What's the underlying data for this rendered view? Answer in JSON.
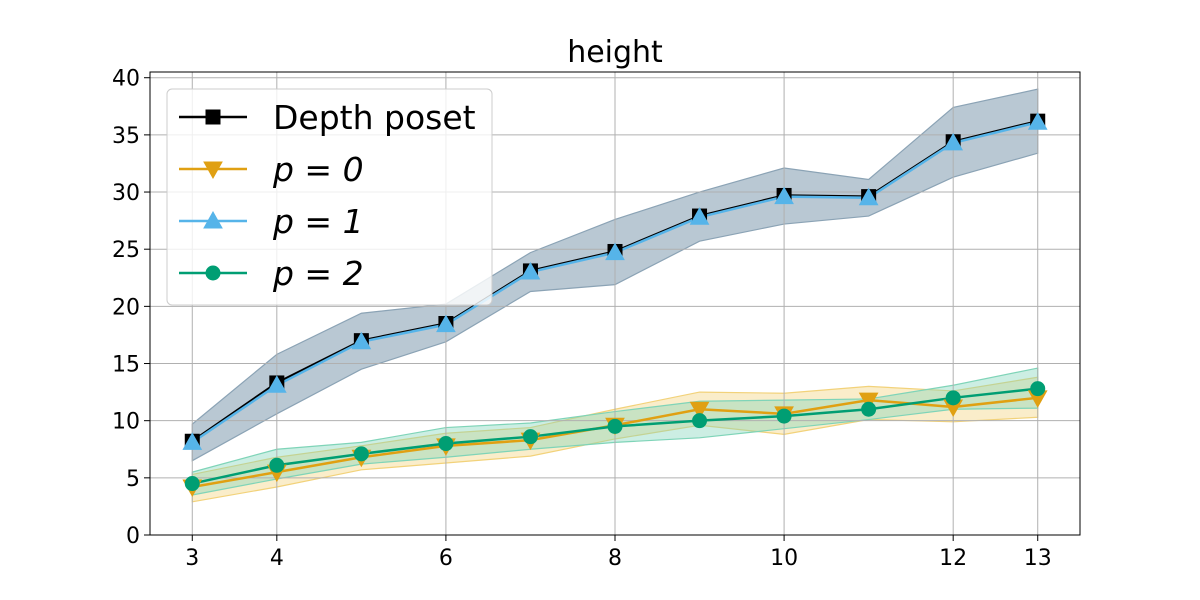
{
  "chart_data": {
    "type": "line",
    "title": "height",
    "xlabel": "",
    "ylabel": "",
    "xlim": [
      2.5,
      13.5
    ],
    "ylim": [
      0,
      40.5
    ],
    "x_ticks": [
      3,
      4,
      6,
      8,
      10,
      12,
      13
    ],
    "y_ticks": [
      0,
      5,
      10,
      15,
      20,
      25,
      30,
      35,
      40
    ],
    "grid": true,
    "legend_position": "top-left",
    "x": [
      3,
      4,
      5,
      6,
      7,
      8,
      9,
      10,
      11,
      12,
      13
    ],
    "series": [
      {
        "name": "Depth poset",
        "marker": "square",
        "color": "#000000",
        "values": [
          8.2,
          13.3,
          17.0,
          18.5,
          23.1,
          24.8,
          27.9,
          29.7,
          29.6,
          34.4,
          36.2
        ],
        "band_lower": [
          6.5,
          10.6,
          14.5,
          16.9,
          21.3,
          21.9,
          25.7,
          27.2,
          27.9,
          31.3,
          33.4
        ],
        "band_upper": [
          9.7,
          15.8,
          19.4,
          20.2,
          24.7,
          27.6,
          30.0,
          32.1,
          31.1,
          37.4,
          39.0
        ],
        "band_color": "#8ba3b5"
      },
      {
        "name": "p = 0",
        "marker": "triangle-down",
        "color": "#e0a012",
        "values": [
          4.2,
          5.5,
          6.8,
          7.8,
          8.3,
          9.6,
          11.0,
          10.6,
          11.8,
          11.2,
          12.0
        ],
        "band_lower": [
          2.9,
          4.2,
          5.7,
          6.3,
          6.9,
          8.4,
          9.6,
          8.8,
          10.1,
          9.9,
          10.3
        ],
        "band_upper": [
          5.3,
          6.8,
          7.8,
          8.9,
          9.4,
          11.0,
          12.5,
          12.4,
          13.0,
          12.6,
          13.8
        ],
        "band_color": "#f2d27a"
      },
      {
        "name": "p = 1",
        "marker": "triangle-up",
        "color": "#56b4e9",
        "values": [
          8.1,
          13.1,
          16.9,
          18.4,
          23.0,
          24.7,
          27.8,
          29.6,
          29.5,
          34.3,
          36.1
        ],
        "band_lower": [],
        "band_upper": [],
        "band_color": "#56b4e9"
      },
      {
        "name": "p = 2",
        "marker": "circle",
        "color": "#009e73",
        "values": [
          4.5,
          6.1,
          7.1,
          8.0,
          8.6,
          9.5,
          10.0,
          10.4,
          11.0,
          12.0,
          12.8
        ],
        "band_lower": [
          3.5,
          4.9,
          6.2,
          6.8,
          7.5,
          8.1,
          8.5,
          9.3,
          10.1,
          11.0,
          11.1
        ],
        "band_upper": [
          5.5,
          7.5,
          8.1,
          9.4,
          9.8,
          10.8,
          11.7,
          11.8,
          11.9,
          13.1,
          14.6
        ],
        "band_color": "#7fd4b8"
      }
    ]
  }
}
